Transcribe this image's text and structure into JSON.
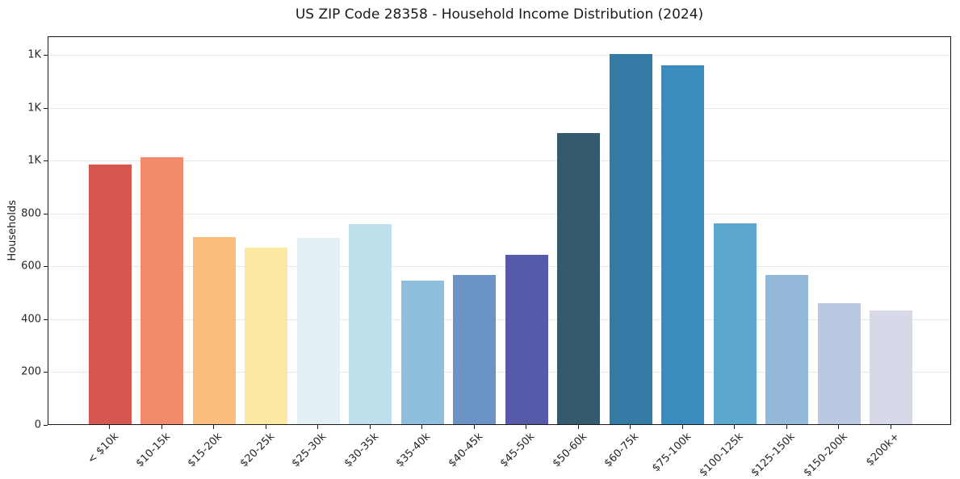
{
  "title": "US ZIP Code 28358 - Household Income Distribution (2024)",
  "chart_data": {
    "type": "bar",
    "title": "US ZIP Code 28358 - Household Income Distribution (2024)",
    "xlabel": "",
    "ylabel": "Households",
    "categories": [
      "< $10k",
      "$10-15k",
      "$15-20k",
      "$20-25k",
      "$25-30k",
      "$30-35k",
      "$35-40k",
      "$40-45k",
      "$45-50k",
      "$50-60k",
      "$60-75k",
      "$75-100k",
      "$100-125k",
      "$125-150k",
      "$150-200k",
      "$200k+"
    ],
    "values": [
      981,
      1009,
      707,
      668,
      706,
      757,
      544,
      565,
      642,
      1100,
      1400,
      1357,
      759,
      565,
      457,
      431
    ],
    "bar_colors": [
      "#d6574f",
      "#f28a6b",
      "#fcbd7e",
      "#fde8a4",
      "#e3f0f4",
      "#bfdfec",
      "#90bedd",
      "#6b93c5",
      "#575aa8",
      "#35596d",
      "#337aa4",
      "#388dbe",
      "#5ca7cd",
      "#94b8d8",
      "#bac9e1",
      "#d8d9e8"
    ],
    "ylim": [
      0,
      1470
    ],
    "yticks": [
      0,
      200,
      400,
      600,
      800,
      1000,
      1200,
      1400
    ],
    "ytick_labels": [
      "0",
      "200",
      "400",
      "600",
      "800",
      "1K",
      "1K",
      "1K"
    ],
    "x_tick_rotation": 45,
    "grid": "horizontal",
    "legend": "none",
    "background": "#ffffff",
    "spine_color": "#1a1a1a"
  }
}
